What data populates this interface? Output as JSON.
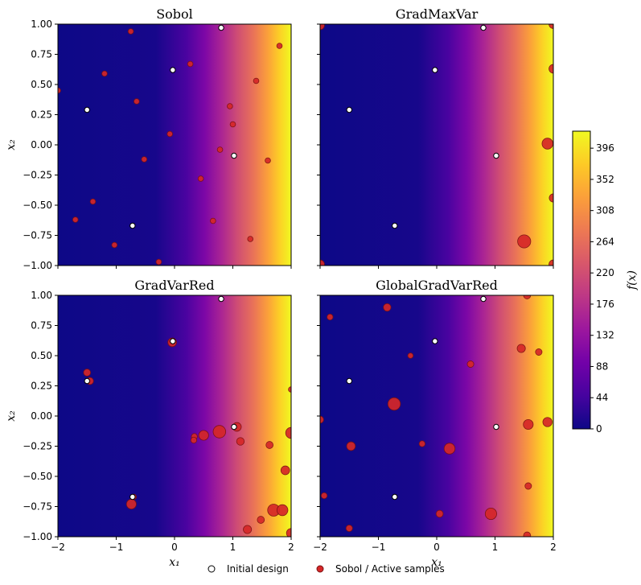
{
  "chart_data": {
    "type": "heatmap",
    "x_range": [
      -2,
      2
    ],
    "y_range": [
      -1,
      1
    ],
    "x_ticks": [
      "−2",
      "−1",
      "0",
      "1",
      "2"
    ],
    "y_ticks": [
      "1.00",
      "0.75",
      "0.50",
      "0.25",
      "0.00",
      "−0.25",
      "−0.50",
      "−0.75",
      "−1.00"
    ],
    "xlabel": "x₁",
    "ylabel": "x₂",
    "colorbar": {
      "label": "f(x)",
      "range": [
        0,
        420
      ],
      "ticks": [
        "396",
        "352",
        "308",
        "264",
        "220",
        "176",
        "132",
        "88",
        "44",
        "0"
      ],
      "colormap": [
        "#0d0887",
        "#46039f",
        "#7201a8",
        "#9c179e",
        "#bd3786",
        "#d8576b",
        "#ed7953",
        "#fb9f3a",
        "#fdca26",
        "#f0f921"
      ]
    },
    "legend": [
      {
        "label": "Initial design",
        "marker": "white circle"
      },
      {
        "label": "Sobol / Active samples",
        "marker": "red circle"
      }
    ],
    "legend_position": "bottom-center",
    "initial_design": [
      {
        "x": 0.8,
        "y": 0.97
      },
      {
        "x": -0.03,
        "y": 0.62
      },
      {
        "x": -1.5,
        "y": 0.29
      },
      {
        "x": 1.02,
        "y": -0.09
      },
      {
        "x": -0.72,
        "y": -0.67
      }
    ],
    "panels": [
      {
        "title": "Sobol",
        "samples": [
          {
            "x": -0.75,
            "y": 0.94,
            "w": 1
          },
          {
            "x": 1.8,
            "y": 0.82,
            "w": 1
          },
          {
            "x": 0.27,
            "y": 0.67,
            "w": 1
          },
          {
            "x": -1.2,
            "y": 0.59,
            "w": 1
          },
          {
            "x": 1.4,
            "y": 0.53,
            "w": 1
          },
          {
            "x": -2.0,
            "y": 0.45,
            "w": 1
          },
          {
            "x": -0.65,
            "y": 0.36,
            "w": 1
          },
          {
            "x": 0.95,
            "y": 0.32,
            "w": 1
          },
          {
            "x": 1.0,
            "y": 0.17,
            "w": 1
          },
          {
            "x": -0.08,
            "y": 0.09,
            "w": 1
          },
          {
            "x": 0.78,
            "y": -0.04,
            "w": 1
          },
          {
            "x": 1.6,
            "y": -0.13,
            "w": 1
          },
          {
            "x": -0.52,
            "y": -0.12,
            "w": 1
          },
          {
            "x": 0.45,
            "y": -0.28,
            "w": 1
          },
          {
            "x": -1.4,
            "y": -0.47,
            "w": 1
          },
          {
            "x": -1.7,
            "y": -0.62,
            "w": 1
          },
          {
            "x": 0.66,
            "y": -0.63,
            "w": 1
          },
          {
            "x": 1.3,
            "y": -0.78,
            "w": 1
          },
          {
            "x": -1.03,
            "y": -0.83,
            "w": 1
          },
          {
            "x": -0.27,
            "y": -0.97,
            "w": 1
          }
        ]
      },
      {
        "title": "GradMaxVar",
        "samples": [
          {
            "x": -2.0,
            "y": 0.99,
            "w": 1.6
          },
          {
            "x": 2.0,
            "y": 1.0,
            "w": 1.6
          },
          {
            "x": 2.0,
            "y": 0.63,
            "w": 1.6
          },
          {
            "x": 1.9,
            "y": 0.01,
            "w": 2.0
          },
          {
            "x": 2.0,
            "y": -0.44,
            "w": 1.5
          },
          {
            "x": 1.5,
            "y": -0.8,
            "w": 2.4
          },
          {
            "x": -2.0,
            "y": -0.99,
            "w": 1.6
          },
          {
            "x": 2.0,
            "y": -0.99,
            "w": 1.6
          }
        ]
      },
      {
        "title": "GradVarRed",
        "samples": [
          {
            "x": -0.04,
            "y": 0.61,
            "w": 1.6
          },
          {
            "x": -1.5,
            "y": 0.36,
            "w": 1.3
          },
          {
            "x": -1.45,
            "y": 0.29,
            "w": 1.3
          },
          {
            "x": 2.0,
            "y": 0.22,
            "w": 1.0
          },
          {
            "x": 0.77,
            "y": -0.13,
            "w": 2.3
          },
          {
            "x": 1.07,
            "y": -0.09,
            "w": 1.6
          },
          {
            "x": 0.5,
            "y": -0.16,
            "w": 1.8
          },
          {
            "x": 0.34,
            "y": -0.17,
            "w": 1.1
          },
          {
            "x": 0.33,
            "y": -0.2,
            "w": 1.1
          },
          {
            "x": 1.13,
            "y": -0.21,
            "w": 1.4
          },
          {
            "x": 2.0,
            "y": -0.14,
            "w": 2.0
          },
          {
            "x": 1.63,
            "y": -0.24,
            "w": 1.3
          },
          {
            "x": 1.9,
            "y": -0.45,
            "w": 1.6
          },
          {
            "x": -0.7,
            "y": -0.67,
            "w": 1.0
          },
          {
            "x": -0.74,
            "y": -0.73,
            "w": 1.8
          },
          {
            "x": 1.7,
            "y": -0.78,
            "w": 2.2
          },
          {
            "x": 1.85,
            "y": -0.78,
            "w": 2.0
          },
          {
            "x": 1.48,
            "y": -0.86,
            "w": 1.3
          },
          {
            "x": 1.25,
            "y": -0.94,
            "w": 1.5
          },
          {
            "x": 2.0,
            "y": -0.97,
            "w": 1.7
          }
        ]
      },
      {
        "title": "GlobalGradVarRed",
        "samples": [
          {
            "x": 1.55,
            "y": 1.0,
            "w": 1.3
          },
          {
            "x": -0.85,
            "y": 0.9,
            "w": 1.4
          },
          {
            "x": -1.83,
            "y": 0.82,
            "w": 1.1
          },
          {
            "x": 1.45,
            "y": 0.56,
            "w": 1.5
          },
          {
            "x": 1.75,
            "y": 0.53,
            "w": 1.2
          },
          {
            "x": -0.45,
            "y": 0.5,
            "w": 1.0
          },
          {
            "x": 0.58,
            "y": 0.43,
            "w": 1.2
          },
          {
            "x": -0.73,
            "y": 0.1,
            "w": 2.3
          },
          {
            "x": -2.0,
            "y": -0.03,
            "w": 1.3
          },
          {
            "x": 1.57,
            "y": -0.07,
            "w": 1.8
          },
          {
            "x": 1.9,
            "y": -0.05,
            "w": 1.7
          },
          {
            "x": -1.47,
            "y": -0.25,
            "w": 1.6
          },
          {
            "x": -0.25,
            "y": -0.23,
            "w": 1.1
          },
          {
            "x": 0.22,
            "y": -0.27,
            "w": 2.0
          },
          {
            "x": 1.57,
            "y": -0.58,
            "w": 1.2
          },
          {
            "x": -1.93,
            "y": -0.66,
            "w": 1.1
          },
          {
            "x": 0.05,
            "y": -0.81,
            "w": 1.3
          },
          {
            "x": 0.93,
            "y": -0.81,
            "w": 2.1
          },
          {
            "x": -1.5,
            "y": -0.93,
            "w": 1.2
          },
          {
            "x": 1.55,
            "y": -0.99,
            "w": 1.3
          }
        ]
      }
    ]
  }
}
